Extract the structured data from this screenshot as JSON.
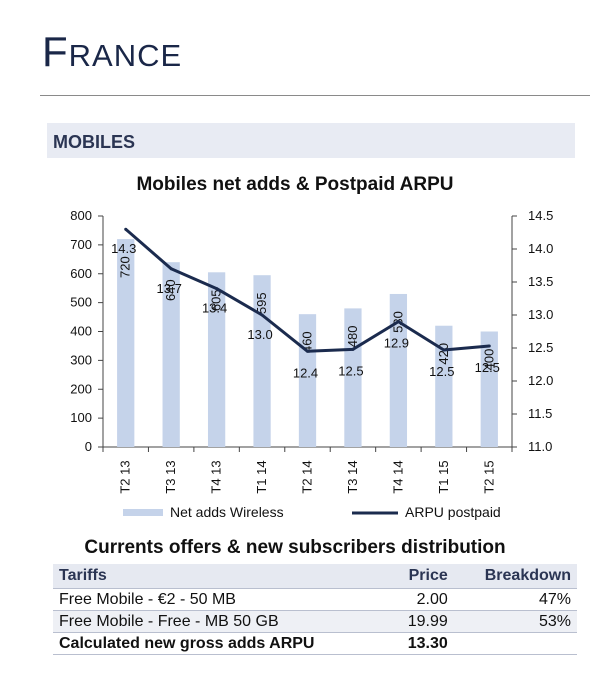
{
  "header": {
    "title_first": "F",
    "title_rest": "RANCE",
    "section": "MOBILES"
  },
  "chart_data": {
    "type": "bar",
    "title": "Mobiles net adds & Postpaid ARPU",
    "categories": [
      "T2 13",
      "T3 13",
      "T4 13",
      "T1 14",
      "T2 14",
      "T3 14",
      "T4 14",
      "T1 15",
      "T2 15"
    ],
    "series": [
      {
        "name": "Net adds Wireless",
        "type": "bar",
        "axis": "left",
        "color": "#c5d3ea",
        "values": [
          720,
          640,
          605,
          595,
          460,
          480,
          530,
          420,
          400
        ],
        "labels": [
          "720",
          "640",
          "605",
          "595",
          "460",
          "480",
          "530",
          "420",
          "400"
        ]
      },
      {
        "name": "ARPU postpaid",
        "type": "line",
        "axis": "right",
        "color": "#1b2b4e",
        "values": [
          14.3,
          13.7,
          13.4,
          13.0,
          12.45,
          12.48,
          12.9,
          12.47,
          12.53
        ],
        "labels": [
          "14.3",
          "13.7",
          "13.4",
          "13.0",
          "12.4",
          "12.5",
          "12.9",
          "12.5",
          "12.5"
        ]
      }
    ],
    "left_axis": {
      "ylim": [
        0,
        800
      ],
      "ticks": [
        "0",
        "100",
        "200",
        "300",
        "400",
        "500",
        "600",
        "700",
        "800"
      ]
    },
    "right_axis": {
      "ylim": [
        11.0,
        14.5
      ],
      "ticks": [
        "11.0",
        "11.5",
        "12.0",
        "12.5",
        "13.0",
        "13.5",
        "14.0",
        "14.5"
      ]
    },
    "legend_position": "bottom",
    "grid": false
  },
  "table": {
    "title": "Currents offers & new subscribers distribution",
    "headers": {
      "tariffs": "Tariffs",
      "price": "Price",
      "breakdown": "Breakdown"
    },
    "rows": [
      {
        "tariff": "Free Mobile -  €2 - 50 MB",
        "price": "2.00",
        "breakdown": "47%"
      },
      {
        "tariff": "Free Mobile - Free - MB 50 GB",
        "price": "19.99",
        "breakdown": "53%"
      }
    ],
    "total": {
      "label": "Calculated new gross adds ARPU",
      "price": "13.30"
    }
  }
}
